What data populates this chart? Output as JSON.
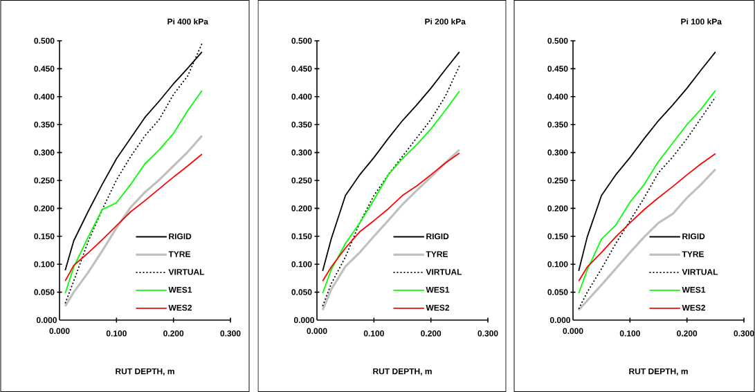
{
  "chart_data": [
    {
      "type": "line",
      "title": "Pi 400 kPa",
      "xlabel": "RUT DEPTH, m",
      "legend": "bottom right",
      "x": [
        0.01,
        0.025,
        0.05,
        0.075,
        0.1,
        0.125,
        0.15,
        0.175,
        0.2,
        0.225,
        0.25
      ],
      "xlim": [
        0,
        0.3
      ],
      "ylim": [
        0,
        0.5
      ],
      "xticks": [
        {
          "value": 0,
          "label": "0.000"
        },
        {
          "value": 0.1,
          "label": "0.100"
        },
        {
          "value": 0.2,
          "label": "0.200"
        },
        {
          "value": 0.3,
          "label": "0.300"
        }
      ],
      "yticks": [
        {
          "value": 0,
          "label": "0.000"
        },
        {
          "value": 0.05,
          "label": "0.050"
        },
        {
          "value": 0.1,
          "label": "0.100"
        },
        {
          "value": 0.15,
          "label": "0.150"
        },
        {
          "value": 0.2,
          "label": "0.200"
        },
        {
          "value": 0.25,
          "label": "0.250"
        },
        {
          "value": 0.3,
          "label": "0.300"
        },
        {
          "value": 0.35,
          "label": "0.350"
        },
        {
          "value": 0.4,
          "label": "0.400"
        },
        {
          "value": 0.45,
          "label": "0.450"
        },
        {
          "value": 0.5,
          "label": "0.500"
        }
      ],
      "series": [
        {
          "name": "RIGID",
          "color": "#000000",
          "line_style": "solid",
          "values": [
            0.089,
            0.142,
            0.194,
            0.243,
            0.289,
            0.326,
            0.363,
            0.392,
            0.423,
            0.451,
            0.48
          ]
        },
        {
          "name": "TYRE",
          "color": "#c0c0c0",
          "line_style": "solid",
          "values": [
            0.025,
            0.05,
            0.085,
            0.124,
            0.165,
            0.202,
            0.229,
            0.251,
            0.276,
            0.301,
            0.33
          ]
        },
        {
          "name": "VIRTUAL",
          "color": "#000000",
          "line_style": "dotted",
          "values": [
            0.03,
            0.07,
            0.14,
            0.198,
            0.251,
            0.293,
            0.33,
            0.359,
            0.404,
            0.437,
            0.495
          ]
        },
        {
          "name": "WES1",
          "color": "#00ff00",
          "line_style": "solid",
          "values": [
            0.048,
            0.095,
            0.148,
            0.198,
            0.21,
            0.243,
            0.28,
            0.305,
            0.334,
            0.375,
            0.411
          ]
        },
        {
          "name": "WES2",
          "color": "#ff0000",
          "line_style": "solid",
          "values": [
            0.07,
            0.098,
            0.12,
            0.144,
            0.169,
            0.194,
            0.214,
            0.235,
            0.256,
            0.276,
            0.297
          ]
        }
      ]
    },
    {
      "type": "line",
      "title": "Pi 200 kPa",
      "xlabel": "RUT DEPTH, m",
      "legend": "bottom right",
      "x": [
        0.01,
        0.025,
        0.05,
        0.075,
        0.1,
        0.125,
        0.15,
        0.175,
        0.2,
        0.225,
        0.25
      ],
      "xlim": [
        0,
        0.3
      ],
      "ylim": [
        0,
        0.5
      ],
      "xticks": [
        {
          "value": 0,
          "label": "0.000"
        },
        {
          "value": 0.1,
          "label": "0.100"
        },
        {
          "value": 0.2,
          "label": "0.200"
        },
        {
          "value": 0.3,
          "label": "0.300"
        }
      ],
      "yticks": [
        {
          "value": 0,
          "label": "0.000"
        },
        {
          "value": 0.05,
          "label": "0.050"
        },
        {
          "value": 0.1,
          "label": "0.100"
        },
        {
          "value": 0.15,
          "label": "0.150"
        },
        {
          "value": 0.2,
          "label": "0.200"
        },
        {
          "value": 0.25,
          "label": "0.250"
        },
        {
          "value": 0.3,
          "label": "0.300"
        },
        {
          "value": 0.35,
          "label": "0.350"
        },
        {
          "value": 0.4,
          "label": "0.400"
        },
        {
          "value": 0.45,
          "label": "0.450"
        },
        {
          "value": 0.5,
          "label": "0.500"
        }
      ],
      "series": [
        {
          "name": "RIGID",
          "color": "#000000",
          "line_style": "solid",
          "values": [
            0.088,
            0.145,
            0.223,
            0.26,
            0.291,
            0.325,
            0.357,
            0.385,
            0.415,
            0.448,
            0.48
          ]
        },
        {
          "name": "TYRE",
          "color": "#c0c0c0",
          "line_style": "solid",
          "values": [
            0.018,
            0.055,
            0.096,
            0.121,
            0.15,
            0.178,
            0.207,
            0.232,
            0.256,
            0.281,
            0.305
          ]
        },
        {
          "name": "VIRTUAL",
          "color": "#000000",
          "line_style": "dotted",
          "values": [
            0.025,
            0.065,
            0.113,
            0.174,
            0.223,
            0.26,
            0.293,
            0.326,
            0.359,
            0.4,
            0.455
          ]
        },
        {
          "name": "WES1",
          "color": "#00ff00",
          "line_style": "solid",
          "values": [
            0.048,
            0.09,
            0.137,
            0.174,
            0.215,
            0.26,
            0.289,
            0.314,
            0.342,
            0.375,
            0.41
          ]
        },
        {
          "name": "WES2",
          "color": "#ff0000",
          "line_style": "solid",
          "values": [
            0.07,
            0.095,
            0.129,
            0.158,
            0.178,
            0.199,
            0.223,
            0.24,
            0.26,
            0.281,
            0.299
          ]
        }
      ]
    },
    {
      "type": "line",
      "title": "Pi 100 kPa",
      "xlabel": "RUT DEPTH, m",
      "legend": "bottom right",
      "x": [
        0.01,
        0.025,
        0.05,
        0.075,
        0.1,
        0.125,
        0.15,
        0.175,
        0.2,
        0.225,
        0.25
      ],
      "xlim": [
        0,
        0.3
      ],
      "ylim": [
        0,
        0.5
      ],
      "xticks": [
        {
          "value": 0,
          "label": "0.000"
        },
        {
          "value": 0.1,
          "label": "0.100"
        },
        {
          "value": 0.2,
          "label": "0.200"
        },
        {
          "value": 0.3,
          "label": "0.300"
        }
      ],
      "yticks": [
        {
          "value": 0,
          "label": "0.000"
        },
        {
          "value": 0.05,
          "label": "0.050"
        },
        {
          "value": 0.1,
          "label": "0.100"
        },
        {
          "value": 0.15,
          "label": "0.150"
        },
        {
          "value": 0.2,
          "label": "0.200"
        },
        {
          "value": 0.25,
          "label": "0.250"
        },
        {
          "value": 0.3,
          "label": "0.300"
        },
        {
          "value": 0.35,
          "label": "0.350"
        },
        {
          "value": 0.4,
          "label": "0.400"
        },
        {
          "value": 0.45,
          "label": "0.450"
        },
        {
          "value": 0.5,
          "label": "0.500"
        }
      ],
      "series": [
        {
          "name": "RIGID",
          "color": "#000000",
          "line_style": "solid",
          "values": [
            0.088,
            0.149,
            0.223,
            0.26,
            0.291,
            0.325,
            0.357,
            0.385,
            0.415,
            0.448,
            0.48
          ]
        },
        {
          "name": "TYRE",
          "color": "#c0c0c0",
          "line_style": "solid",
          "values": [
            0.018,
            0.035,
            0.063,
            0.092,
            0.121,
            0.149,
            0.174,
            0.19,
            0.219,
            0.243,
            0.27
          ]
        },
        {
          "name": "VIRTUAL",
          "color": "#000000",
          "line_style": "dotted",
          "values": [
            0.02,
            0.05,
            0.092,
            0.137,
            0.178,
            0.219,
            0.264,
            0.292,
            0.325,
            0.362,
            0.399
          ]
        },
        {
          "name": "WES1",
          "color": "#00ff00",
          "line_style": "solid",
          "values": [
            0.048,
            0.09,
            0.145,
            0.17,
            0.211,
            0.243,
            0.284,
            0.317,
            0.35,
            0.378,
            0.411
          ]
        },
        {
          "name": "WES2",
          "color": "#ff0000",
          "line_style": "solid",
          "values": [
            0.07,
            0.095,
            0.121,
            0.149,
            0.174,
            0.198,
            0.219,
            0.239,
            0.26,
            0.28,
            0.298
          ]
        }
      ]
    }
  ]
}
